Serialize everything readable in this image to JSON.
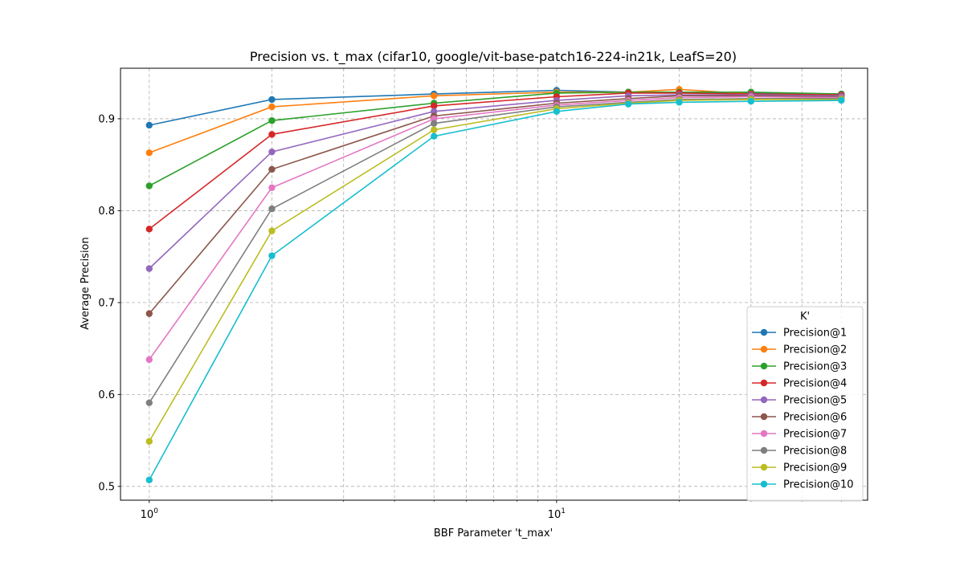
{
  "chart_data": {
    "type": "line",
    "title": "Precision vs. t_max (cifar10, google/vit-base-patch16-224-in21k, LeafS=20)",
    "xlabel": "BBF Parameter 't_max'",
    "ylabel": "Average Precision",
    "xscale": "log",
    "xlim": [
      0.85,
      58
    ],
    "ylim": [
      0.485,
      0.955
    ],
    "grid": true,
    "x": [
      1,
      2,
      5,
      10,
      15,
      20,
      30,
      50
    ],
    "x_tick_labels": [
      {
        "value": 1,
        "label": "10",
        "exp": "0"
      },
      {
        "value": 10,
        "label": "10",
        "exp": "1"
      }
    ],
    "y_ticks": [
      0.5,
      0.6,
      0.7,
      0.8,
      0.9
    ],
    "y_tick_labels": [
      "0.5",
      "0.6",
      "0.7",
      "0.8",
      "0.9"
    ],
    "legend": {
      "title": "K'",
      "position": "lower-right"
    },
    "series": [
      {
        "name": "Precision@1",
        "color": "#1f77b4",
        "values": [
          0.893,
          0.921,
          0.927,
          0.931,
          0.929,
          0.929,
          0.928,
          0.927
        ]
      },
      {
        "name": "Precision@2",
        "color": "#ff7f0e",
        "values": [
          0.863,
          0.913,
          0.925,
          0.929,
          0.929,
          0.932,
          0.927,
          0.926
        ]
      },
      {
        "name": "Precision@3",
        "color": "#2ca02c",
        "values": [
          0.827,
          0.898,
          0.917,
          0.928,
          0.929,
          0.929,
          0.929,
          0.927
        ]
      },
      {
        "name": "Precision@4",
        "color": "#d62728",
        "values": [
          0.78,
          0.883,
          0.914,
          0.924,
          0.928,
          0.928,
          0.927,
          0.926
        ]
      },
      {
        "name": "Precision@5",
        "color": "#9467bd",
        "values": [
          0.737,
          0.864,
          0.908,
          0.92,
          0.925,
          0.926,
          0.926,
          0.925
        ]
      },
      {
        "name": "Precision@6",
        "color": "#8c564b",
        "values": [
          0.688,
          0.845,
          0.903,
          0.917,
          0.922,
          0.925,
          0.925,
          0.924
        ]
      },
      {
        "name": "Precision@7",
        "color": "#e377c2",
        "values": [
          0.638,
          0.825,
          0.9,
          0.915,
          0.92,
          0.923,
          0.924,
          0.923
        ]
      },
      {
        "name": "Precision@8",
        "color": "#7f7f7f",
        "values": [
          0.591,
          0.802,
          0.895,
          0.913,
          0.918,
          0.921,
          0.922,
          0.922
        ]
      },
      {
        "name": "Precision@9",
        "color": "#bcbd22",
        "values": [
          0.549,
          0.778,
          0.888,
          0.911,
          0.917,
          0.92,
          0.921,
          0.921
        ]
      },
      {
        "name": "Precision@10",
        "color": "#17becf",
        "values": [
          0.507,
          0.751,
          0.881,
          0.908,
          0.916,
          0.918,
          0.919,
          0.92
        ]
      }
    ]
  }
}
